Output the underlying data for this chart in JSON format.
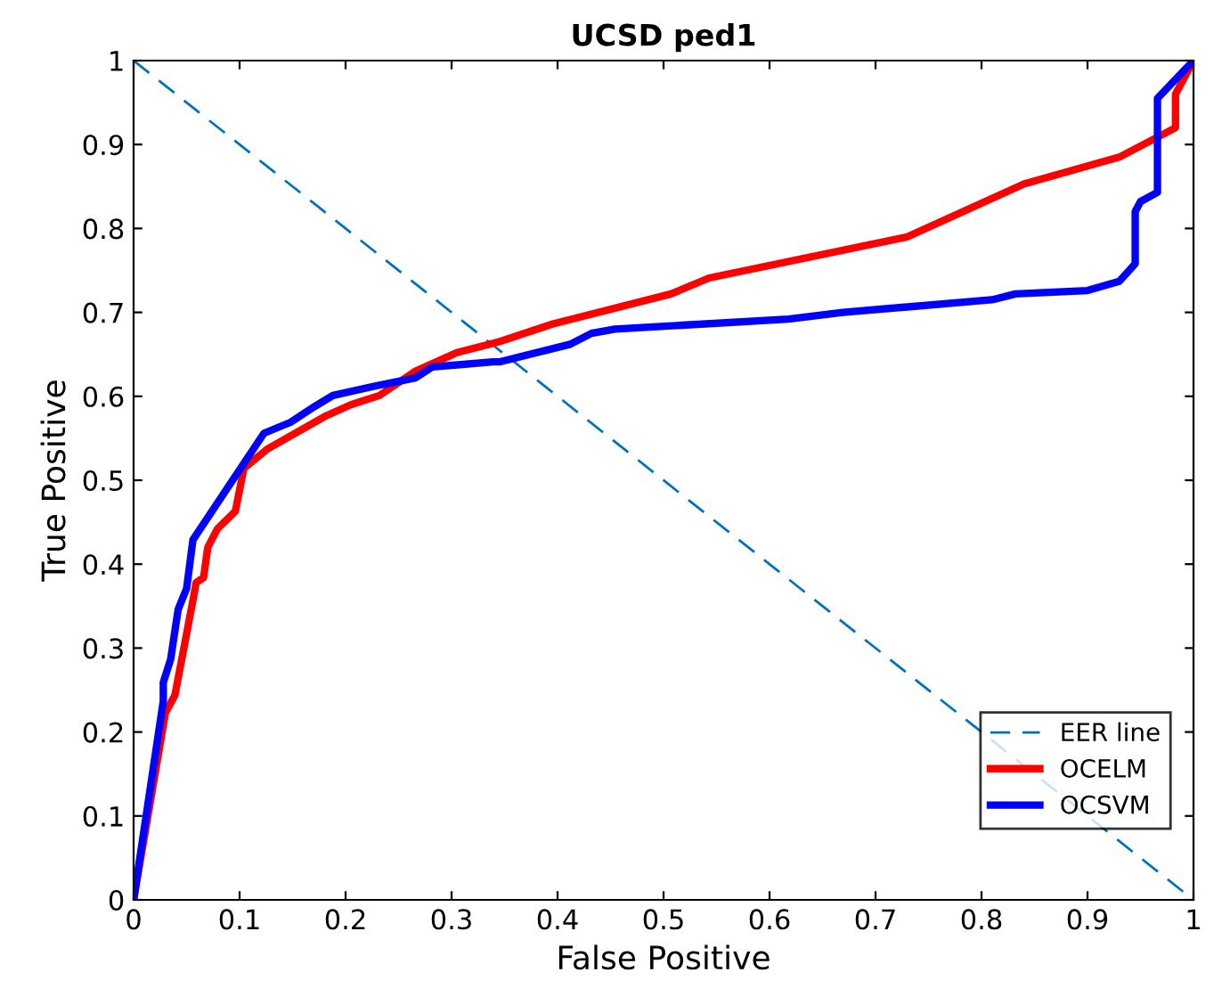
{
  "chart_data": {
    "type": "line",
    "title": "UCSD ped1",
    "xlabel": "False Positive",
    "ylabel": "True Positive",
    "xlim": [
      0,
      1
    ],
    "ylim": [
      0,
      1
    ],
    "xticks": [
      0,
      0.1,
      0.2,
      0.3,
      0.4,
      0.5,
      0.6,
      0.7,
      0.8,
      0.9,
      1
    ],
    "yticks": [
      0,
      0.1,
      0.2,
      0.3,
      0.4,
      0.5,
      0.6,
      0.7,
      0.8,
      0.9,
      1
    ],
    "grid": false,
    "legend": "bottom right",
    "marker": "none",
    "series": [
      {
        "name": "EER line",
        "color": "#0072bd",
        "line_style": "dashed",
        "x": [
          0,
          1
        ],
        "values": [
          1,
          0
        ]
      },
      {
        "name": "OCELM",
        "color": "#ff0000",
        "line_style": "solid",
        "x": [
          0,
          0.03,
          0.039,
          0.056,
          0.059,
          0.066,
          0.07,
          0.079,
          0.096,
          0.104,
          0.126,
          0.182,
          0.205,
          0.232,
          0.266,
          0.305,
          0.345,
          0.395,
          0.507,
          0.543,
          0.73,
          0.84,
          0.93,
          0.983,
          0.983,
          1
        ],
        "values": [
          0,
          0.223,
          0.244,
          0.357,
          0.378,
          0.384,
          0.42,
          0.442,
          0.463,
          0.514,
          0.537,
          0.577,
          0.59,
          0.601,
          0.63,
          0.652,
          0.665,
          0.686,
          0.722,
          0.741,
          0.79,
          0.853,
          0.885,
          0.92,
          0.96,
          1
        ]
      },
      {
        "name": "OCSVM",
        "color": "#0000ff",
        "line_style": "solid",
        "x": [
          0,
          0.028,
          0.028,
          0.035,
          0.042,
          0.05,
          0.056,
          0.123,
          0.148,
          0.171,
          0.188,
          0.227,
          0.266,
          0.282,
          0.339,
          0.345,
          0.412,
          0.432,
          0.454,
          0.618,
          0.669,
          0.81,
          0.832,
          0.9,
          0.93,
          0.945,
          0.945,
          0.95,
          0.966,
          0.966,
          1
        ],
        "values": [
          0,
          0.237,
          0.259,
          0.287,
          0.346,
          0.371,
          0.429,
          0.556,
          0.569,
          0.588,
          0.601,
          0.612,
          0.622,
          0.635,
          0.641,
          0.641,
          0.662,
          0.675,
          0.68,
          0.692,
          0.7,
          0.715,
          0.722,
          0.726,
          0.737,
          0.758,
          0.82,
          0.832,
          0.843,
          0.955,
          1
        ]
      }
    ]
  }
}
